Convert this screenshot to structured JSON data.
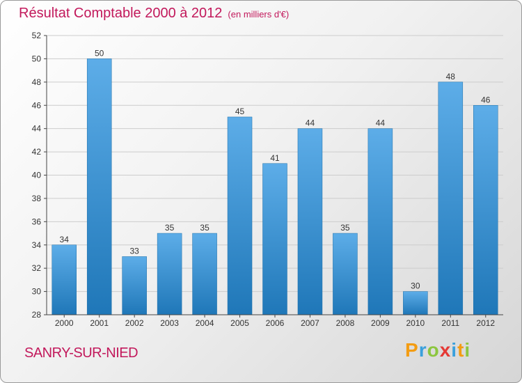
{
  "header": {
    "title": "Résultat Comptable 2000 à 2012",
    "subtitle": "(en milliers d'€)"
  },
  "footer": {
    "city": "SANRY-SUR-NIED",
    "logo": [
      "P",
      "r",
      "o",
      "x",
      "i",
      "t",
      "i"
    ]
  },
  "colors": {
    "title": "#c2185b",
    "bar_top": "#5dade8",
    "bar_bottom": "#1f77b8",
    "axis": "#444444",
    "grid": "#cccccc"
  },
  "chart_data": {
    "type": "bar",
    "title": "Résultat Comptable 2000 à 2012",
    "ylabel": "(en milliers d'€)",
    "xlabel": "",
    "categories": [
      "2000",
      "2001",
      "2002",
      "2003",
      "2004",
      "2005",
      "2006",
      "2007",
      "2008",
      "2009",
      "2010",
      "2011",
      "2012"
    ],
    "values": [
      34,
      50,
      33,
      35,
      35,
      45,
      41,
      44,
      35,
      44,
      30,
      48,
      46
    ],
    "ylim": [
      28,
      52
    ],
    "yticks": [
      28,
      30,
      32,
      34,
      36,
      38,
      40,
      42,
      44,
      46,
      48,
      50,
      52
    ],
    "grid": true
  }
}
